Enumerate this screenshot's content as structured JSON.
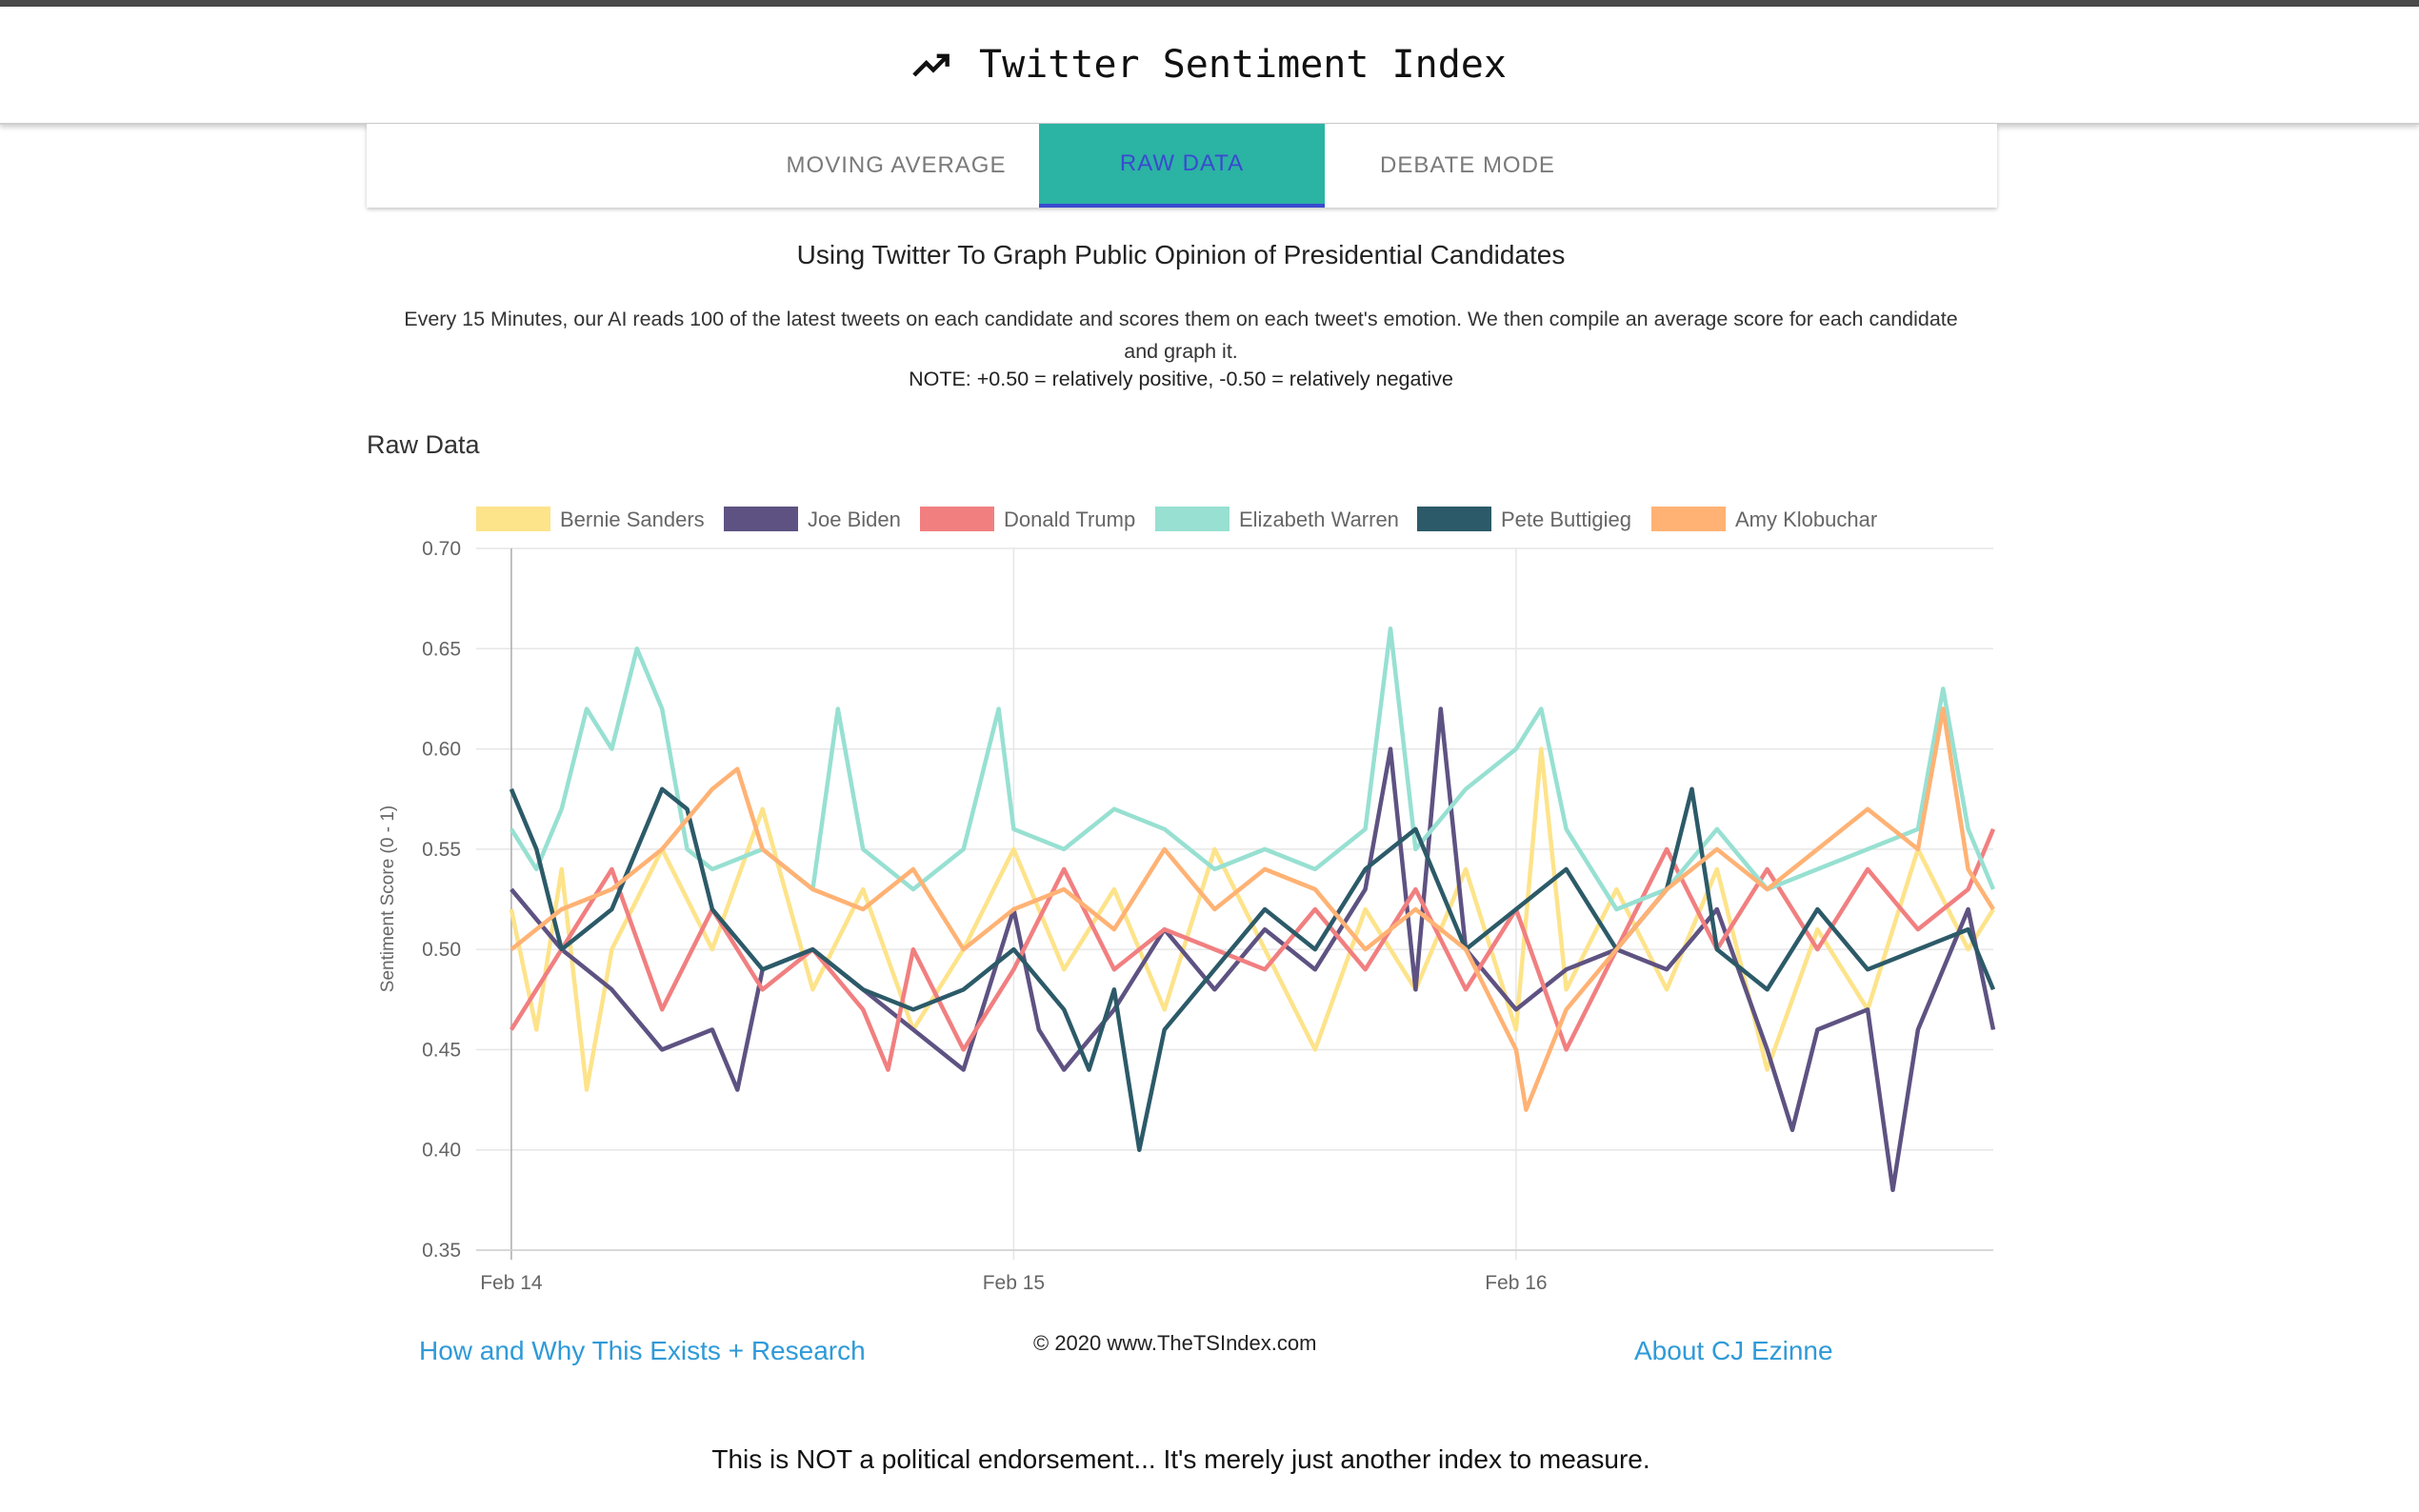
{
  "header": {
    "title": "Twitter Sentiment Index",
    "icon": "trending-up-icon"
  },
  "tabs": [
    {
      "label": "Moving Average",
      "active": false
    },
    {
      "label": "Raw Data",
      "active": true
    },
    {
      "label": "Debate Mode",
      "active": false
    }
  ],
  "intro": {
    "subtitle": "Using Twitter To Graph Public Opinion of Presidential Candidates",
    "description": "Every 15 Minutes, our AI reads 100 of the latest tweets on each candidate and scores them on each tweet's emotion. We then compile an average score for each candidate and graph it.",
    "note": "NOTE: +0.50 = relatively positive, -0.50 = relatively negative"
  },
  "chart_data": {
    "type": "line",
    "title": "Raw Data",
    "xlabel": "",
    "ylabel": "Sentiment Score (0 - 1)",
    "ylim": [
      0.35,
      0.7
    ],
    "y_ticks": [
      "0.70",
      "0.65",
      "0.60",
      "0.55",
      "0.50",
      "0.45",
      "0.40",
      "0.35"
    ],
    "x_ticks": [
      "Feb 14",
      "Feb 15",
      "Feb 16"
    ],
    "x_domain_days": [
      -0.07,
      2.95
    ],
    "grid": true,
    "legend_position": "top",
    "series": [
      {
        "name": "Bernie Sanders",
        "color": "#fde38a",
        "points": [
          [
            0,
            0.52
          ],
          [
            0.05,
            0.46
          ],
          [
            0.1,
            0.54
          ],
          [
            0.15,
            0.43
          ],
          [
            0.2,
            0.5
          ],
          [
            0.3,
            0.55
          ],
          [
            0.4,
            0.5
          ],
          [
            0.5,
            0.57
          ],
          [
            0.6,
            0.48
          ],
          [
            0.7,
            0.53
          ],
          [
            0.8,
            0.46
          ],
          [
            0.9,
            0.5
          ],
          [
            1.0,
            0.55
          ],
          [
            1.1,
            0.49
          ],
          [
            1.2,
            0.53
          ],
          [
            1.3,
            0.47
          ],
          [
            1.4,
            0.55
          ],
          [
            1.5,
            0.5
          ],
          [
            1.6,
            0.45
          ],
          [
            1.7,
            0.52
          ],
          [
            1.8,
            0.48
          ],
          [
            1.9,
            0.54
          ],
          [
            2.0,
            0.46
          ],
          [
            2.05,
            0.6
          ],
          [
            2.1,
            0.48
          ],
          [
            2.2,
            0.53
          ],
          [
            2.3,
            0.48
          ],
          [
            2.4,
            0.54
          ],
          [
            2.5,
            0.44
          ],
          [
            2.6,
            0.51
          ],
          [
            2.7,
            0.47
          ],
          [
            2.8,
            0.55
          ],
          [
            2.9,
            0.5
          ],
          [
            2.95,
            0.52
          ]
        ]
      },
      {
        "name": "Joe Biden",
        "color": "#5e5282",
        "points": [
          [
            0,
            0.53
          ],
          [
            0.1,
            0.5
          ],
          [
            0.2,
            0.48
          ],
          [
            0.3,
            0.45
          ],
          [
            0.4,
            0.46
          ],
          [
            0.45,
            0.43
          ],
          [
            0.5,
            0.49
          ],
          [
            0.6,
            0.5
          ],
          [
            0.7,
            0.48
          ],
          [
            0.8,
            0.46
          ],
          [
            0.9,
            0.44
          ],
          [
            1.0,
            0.52
          ],
          [
            1.05,
            0.46
          ],
          [
            1.1,
            0.44
          ],
          [
            1.2,
            0.47
          ],
          [
            1.3,
            0.51
          ],
          [
            1.4,
            0.48
          ],
          [
            1.5,
            0.51
          ],
          [
            1.6,
            0.49
          ],
          [
            1.7,
            0.53
          ],
          [
            1.75,
            0.6
          ],
          [
            1.8,
            0.48
          ],
          [
            1.85,
            0.62
          ],
          [
            1.9,
            0.5
          ],
          [
            2.0,
            0.47
          ],
          [
            2.1,
            0.49
          ],
          [
            2.2,
            0.5
          ],
          [
            2.3,
            0.49
          ],
          [
            2.4,
            0.52
          ],
          [
            2.5,
            0.45
          ],
          [
            2.55,
            0.41
          ],
          [
            2.6,
            0.46
          ],
          [
            2.7,
            0.47
          ],
          [
            2.75,
            0.38
          ],
          [
            2.8,
            0.46
          ],
          [
            2.9,
            0.52
          ],
          [
            2.95,
            0.46
          ]
        ]
      },
      {
        "name": "Donald Trump",
        "color": "#f17f80",
        "points": [
          [
            0,
            0.46
          ],
          [
            0.1,
            0.5
          ],
          [
            0.2,
            0.54
          ],
          [
            0.3,
            0.47
          ],
          [
            0.4,
            0.52
          ],
          [
            0.5,
            0.48
          ],
          [
            0.6,
            0.5
          ],
          [
            0.7,
            0.47
          ],
          [
            0.75,
            0.44
          ],
          [
            0.8,
            0.5
          ],
          [
            0.9,
            0.45
          ],
          [
            1.0,
            0.49
          ],
          [
            1.1,
            0.54
          ],
          [
            1.2,
            0.49
          ],
          [
            1.3,
            0.51
          ],
          [
            1.4,
            0.5
          ],
          [
            1.5,
            0.49
          ],
          [
            1.6,
            0.52
          ],
          [
            1.7,
            0.49
          ],
          [
            1.8,
            0.53
          ],
          [
            1.9,
            0.48
          ],
          [
            2.0,
            0.52
          ],
          [
            2.1,
            0.45
          ],
          [
            2.2,
            0.5
          ],
          [
            2.3,
            0.55
          ],
          [
            2.4,
            0.5
          ],
          [
            2.5,
            0.54
          ],
          [
            2.6,
            0.5
          ],
          [
            2.7,
            0.54
          ],
          [
            2.8,
            0.51
          ],
          [
            2.9,
            0.53
          ],
          [
            2.95,
            0.56
          ]
        ]
      },
      {
        "name": "Elizabeth Warren",
        "color": "#97e0d2",
        "points": [
          [
            0,
            0.56
          ],
          [
            0.05,
            0.54
          ],
          [
            0.1,
            0.57
          ],
          [
            0.15,
            0.62
          ],
          [
            0.2,
            0.6
          ],
          [
            0.25,
            0.65
          ],
          [
            0.3,
            0.62
          ],
          [
            0.35,
            0.55
          ],
          [
            0.4,
            0.54
          ],
          [
            0.5,
            0.55
          ],
          [
            0.6,
            0.53
          ],
          [
            0.65,
            0.62
          ],
          [
            0.7,
            0.55
          ],
          [
            0.8,
            0.53
          ],
          [
            0.9,
            0.55
          ],
          [
            0.97,
            0.62
          ],
          [
            1.0,
            0.56
          ],
          [
            1.1,
            0.55
          ],
          [
            1.2,
            0.57
          ],
          [
            1.3,
            0.56
          ],
          [
            1.4,
            0.54
          ],
          [
            1.5,
            0.55
          ],
          [
            1.6,
            0.54
          ],
          [
            1.7,
            0.56
          ],
          [
            1.75,
            0.66
          ],
          [
            1.8,
            0.55
          ],
          [
            1.9,
            0.58
          ],
          [
            2.0,
            0.6
          ],
          [
            2.05,
            0.62
          ],
          [
            2.1,
            0.56
          ],
          [
            2.2,
            0.52
          ],
          [
            2.3,
            0.53
          ],
          [
            2.4,
            0.56
          ],
          [
            2.5,
            0.53
          ],
          [
            2.6,
            0.54
          ],
          [
            2.7,
            0.55
          ],
          [
            2.8,
            0.56
          ],
          [
            2.85,
            0.63
          ],
          [
            2.9,
            0.56
          ],
          [
            2.95,
            0.53
          ]
        ]
      },
      {
        "name": "Pete Buttigieg",
        "color": "#2c5a68",
        "points": [
          [
            0,
            0.58
          ],
          [
            0.05,
            0.55
          ],
          [
            0.1,
            0.5
          ],
          [
            0.2,
            0.52
          ],
          [
            0.3,
            0.58
          ],
          [
            0.35,
            0.57
          ],
          [
            0.4,
            0.52
          ],
          [
            0.5,
            0.49
          ],
          [
            0.6,
            0.5
          ],
          [
            0.7,
            0.48
          ],
          [
            0.8,
            0.47
          ],
          [
            0.9,
            0.48
          ],
          [
            1.0,
            0.5
          ],
          [
            1.1,
            0.47
          ],
          [
            1.15,
            0.44
          ],
          [
            1.2,
            0.48
          ],
          [
            1.25,
            0.4
          ],
          [
            1.3,
            0.46
          ],
          [
            1.4,
            0.49
          ],
          [
            1.5,
            0.52
          ],
          [
            1.6,
            0.5
          ],
          [
            1.7,
            0.54
          ],
          [
            1.8,
            0.56
          ],
          [
            1.9,
            0.5
          ],
          [
            2.0,
            0.52
          ],
          [
            2.1,
            0.54
          ],
          [
            2.2,
            0.5
          ],
          [
            2.3,
            0.53
          ],
          [
            2.35,
            0.58
          ],
          [
            2.4,
            0.5
          ],
          [
            2.5,
            0.48
          ],
          [
            2.6,
            0.52
          ],
          [
            2.7,
            0.49
          ],
          [
            2.8,
            0.5
          ],
          [
            2.9,
            0.51
          ],
          [
            2.95,
            0.48
          ]
        ]
      },
      {
        "name": "Amy Klobuchar",
        "color": "#ffb274",
        "points": [
          [
            0,
            0.5
          ],
          [
            0.1,
            0.52
          ],
          [
            0.2,
            0.53
          ],
          [
            0.3,
            0.55
          ],
          [
            0.4,
            0.58
          ],
          [
            0.45,
            0.59
          ],
          [
            0.5,
            0.55
          ],
          [
            0.6,
            0.53
          ],
          [
            0.7,
            0.52
          ],
          [
            0.8,
            0.54
          ],
          [
            0.9,
            0.5
          ],
          [
            1.0,
            0.52
          ],
          [
            1.1,
            0.53
          ],
          [
            1.2,
            0.51
          ],
          [
            1.3,
            0.55
          ],
          [
            1.4,
            0.52
          ],
          [
            1.5,
            0.54
          ],
          [
            1.6,
            0.53
          ],
          [
            1.7,
            0.5
          ],
          [
            1.8,
            0.52
          ],
          [
            1.9,
            0.5
          ],
          [
            2.0,
            0.45
          ],
          [
            2.02,
            0.42
          ],
          [
            2.1,
            0.47
          ],
          [
            2.2,
            0.5
          ],
          [
            2.3,
            0.53
          ],
          [
            2.4,
            0.55
          ],
          [
            2.5,
            0.53
          ],
          [
            2.6,
            0.55
          ],
          [
            2.7,
            0.57
          ],
          [
            2.8,
            0.55
          ],
          [
            2.85,
            0.62
          ],
          [
            2.9,
            0.54
          ],
          [
            2.95,
            0.52
          ]
        ]
      }
    ]
  },
  "footer": {
    "left_link": "How and Why This Exists + Research",
    "copyright": "© 2020 www.TheTSIndex.com",
    "right_link": "About CJ Ezinne",
    "disclaimer": "This is NOT a political endorsement... It's merely just another index to measure."
  }
}
